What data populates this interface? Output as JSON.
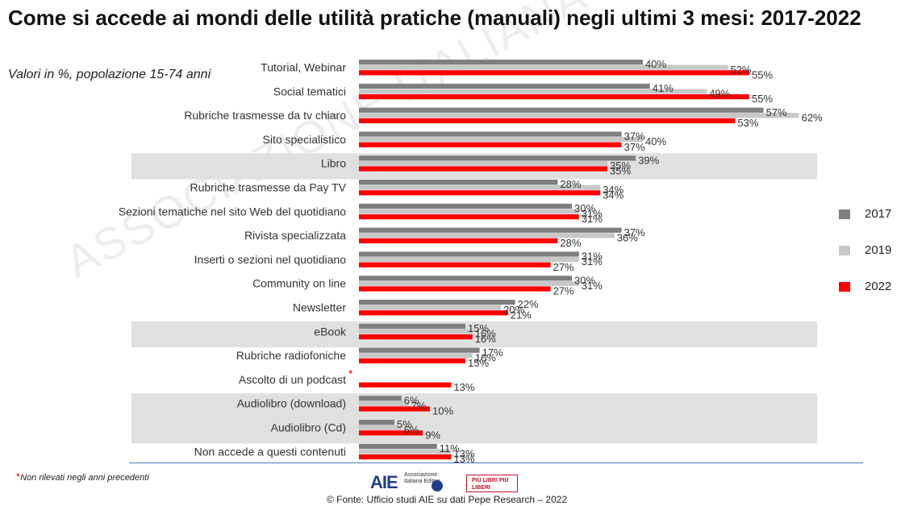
{
  "title": "Come si accede ai mondi delle utilità pratiche (manuali) negli ultimi 3 mesi: 2017-2022",
  "subtitle": "Valori in %, popolazione 15-74 anni",
  "watermark": "ASSOCIAZIONE ITALIANA EDITORI",
  "footnote": "Non rilevati negli anni precedenti",
  "asterisk": "*",
  "source": "© Fonte: Ufficio studi AIE su dati Pepe Research – 2022",
  "logos": {
    "aie": "AIE",
    "aie_text": "Associazione Italiana Editori",
    "piu_libri": "PIÙ LIBRI PIÙ LIBERI"
  },
  "colors": {
    "2017": "#7f7f7f",
    "2019": "#c8c8c8",
    "2022": "#ff0000",
    "band": "#e0e0e0"
  },
  "chart_data": {
    "type": "bar",
    "orientation": "horizontal",
    "categories": [
      "Tutorial, Webinar",
      "Social tematici",
      "Rubriche trasmesse da tv chiaro",
      "Sito specialistico",
      "Libro",
      "Rubriche trasmesse da Pay TV",
      "Sezioni tematiche nel sito Web del quotidiano",
      "Rivista specializzata",
      "Inserti o sezioni nel quotidiano",
      "Community on line",
      "Newsletter",
      "eBook",
      "Rubriche radiofoniche",
      "Ascolto di un podcast",
      "Audiolibro (download)",
      "Audiolibro (Cd)",
      "Non accede a questi contenuti"
    ],
    "asterisk_category": "Ascolto di un podcast",
    "highlighted_categories": [
      "Libro",
      "eBook",
      "Audiolibro (download)",
      "Audiolibro (Cd)"
    ],
    "series": [
      {
        "name": "2017",
        "values": [
          40,
          41,
          57,
          37,
          39,
          28,
          30,
          37,
          31,
          30,
          22,
          15,
          17,
          null,
          6,
          5,
          11
        ]
      },
      {
        "name": "2019",
        "values": [
          52,
          49,
          62,
          40,
          35,
          34,
          31,
          36,
          31,
          31,
          20,
          16,
          16,
          null,
          7,
          6,
          13
        ]
      },
      {
        "name": "2022",
        "values": [
          55,
          55,
          53,
          37,
          35,
          34,
          31,
          28,
          27,
          27,
          21,
          16,
          15,
          13,
          10,
          9,
          13
        ]
      }
    ],
    "value_suffix": "%",
    "legend": [
      "2017",
      "2019",
      "2022"
    ],
    "legend_position": "right",
    "grid": false
  }
}
